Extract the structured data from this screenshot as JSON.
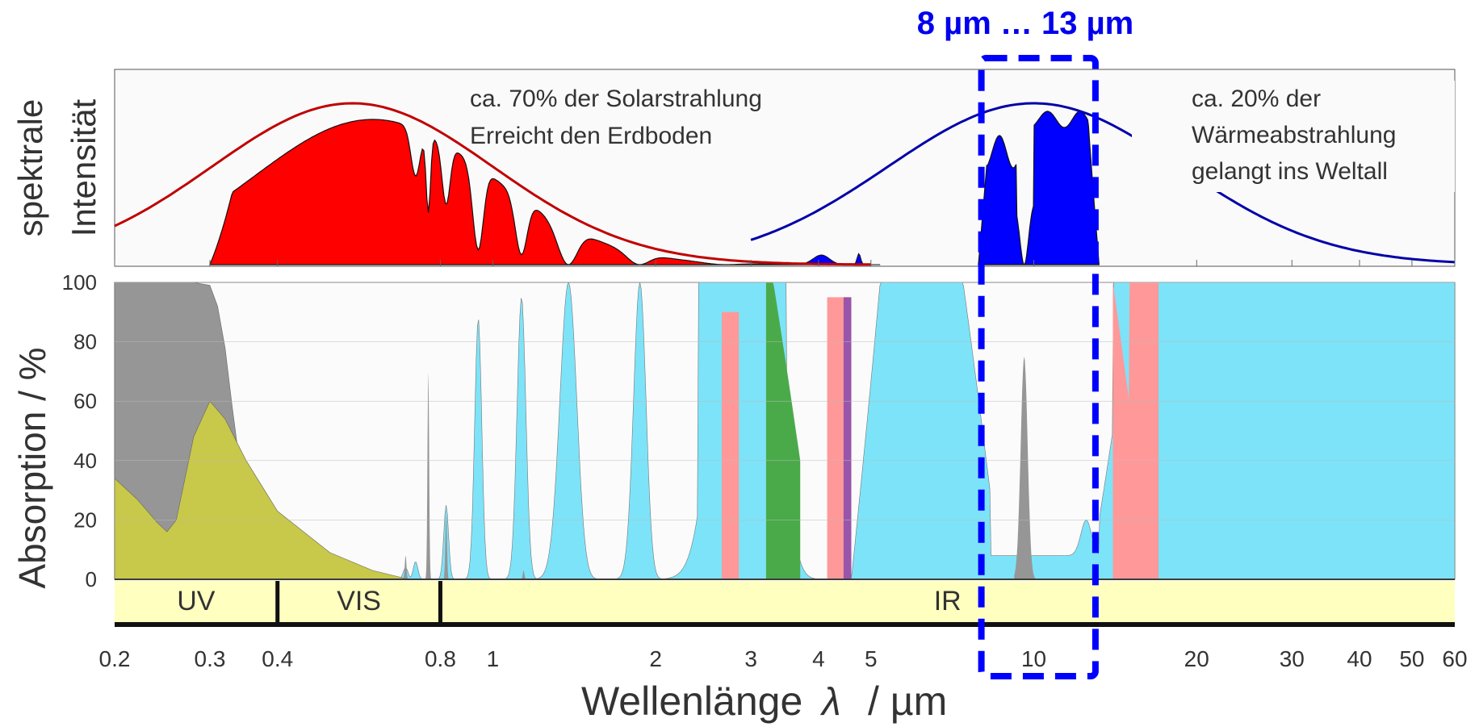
{
  "chart_data": [
    {
      "type": "area",
      "panel": "top",
      "ylabel_line1": "spektrale",
      "ylabel_line2": "Intensität",
      "xscale": "log",
      "xlim": [
        0.2,
        60
      ],
      "grid": false,
      "annotation_left_line1": "ca. 70% der Solarstrahlung",
      "annotation_left_line2": "Erreicht den Erdboden",
      "annotation_right_line1": "ca. 20% der",
      "annotation_right_line2": "Wärmeabstrahlung",
      "annotation_right_line3": "gelangt ins Weltall",
      "highlight_label": "8 µm … 13 µm",
      "highlight_range": [
        8,
        13
      ],
      "series_colors": {
        "solar_envelope": "#c00000",
        "solar_transmitted": "#ff0000",
        "thermal_envelope": "#0000a8",
        "thermal_transmitted": "#0000ff",
        "highlight": "#0000ff"
      }
    },
    {
      "type": "area",
      "panel": "bottom",
      "ylabel": "Absorption  /  %",
      "xlabel_text": "Wellenlänge",
      "xlabel_symbol": "λ",
      "xlabel_unit": "/ µm",
      "xscale": "log",
      "xlim": [
        0.2,
        60
      ],
      "ylim": [
        0,
        100
      ],
      "yticks": [
        "0",
        "20",
        "40",
        "60",
        "80",
        "100"
      ],
      "xticks": [
        {
          "value": 0.2,
          "label": "0.2"
        },
        {
          "value": 0.3,
          "label": "0.3"
        },
        {
          "value": 0.4,
          "label": "0.4"
        },
        {
          "value": 0.8,
          "label": "0.8"
        },
        {
          "value": 1,
          "label": "1"
        },
        {
          "value": 2,
          "label": "2"
        },
        {
          "value": 3,
          "label": "3"
        },
        {
          "value": 4,
          "label": "4"
        },
        {
          "value": 5,
          "label": "5"
        },
        {
          "value": 10,
          "label": "10"
        },
        {
          "value": 20,
          "label": "20"
        },
        {
          "value": 30,
          "label": "30"
        },
        {
          "value": 40,
          "label": "40"
        },
        {
          "value": 50,
          "label": "50"
        },
        {
          "value": 60,
          "label": "60"
        }
      ],
      "bands": [
        {
          "label": "UV",
          "from": 0.2,
          "to": 0.4
        },
        {
          "label": "VIS",
          "from": 0.4,
          "to": 0.8
        },
        {
          "label": "IR",
          "from": 0.8,
          "to": 60
        }
      ],
      "band_color": "#ffffc0",
      "series_colors": {
        "water_vapor": "#7de3f8",
        "ozone_uv": "#c8c84a",
        "oxygen_gray": "#969696",
        "carbon_dioxide": "#ff9999",
        "methane_green": "#4aaa4a",
        "nitrous_purple": "#9955aa"
      },
      "series": [
        {
          "key": "oxygen_gray",
          "x": [
            0.2,
            0.28,
            0.3,
            0.31,
            0.32,
            0.33,
            0.34,
            0.35
          ],
          "y": [
            100,
            100,
            99,
            92,
            78,
            58,
            40,
            25
          ]
        },
        {
          "key": "ozone_uv",
          "x": [
            0.2,
            0.22,
            0.24,
            0.25,
            0.26,
            0.28,
            0.3,
            0.32,
            0.35,
            0.4,
            0.5,
            0.6,
            0.7
          ],
          "y": [
            34,
            27,
            19,
            16,
            20,
            48,
            60,
            54,
            40,
            23,
            9,
            3,
            0
          ]
        }
      ]
    }
  ]
}
